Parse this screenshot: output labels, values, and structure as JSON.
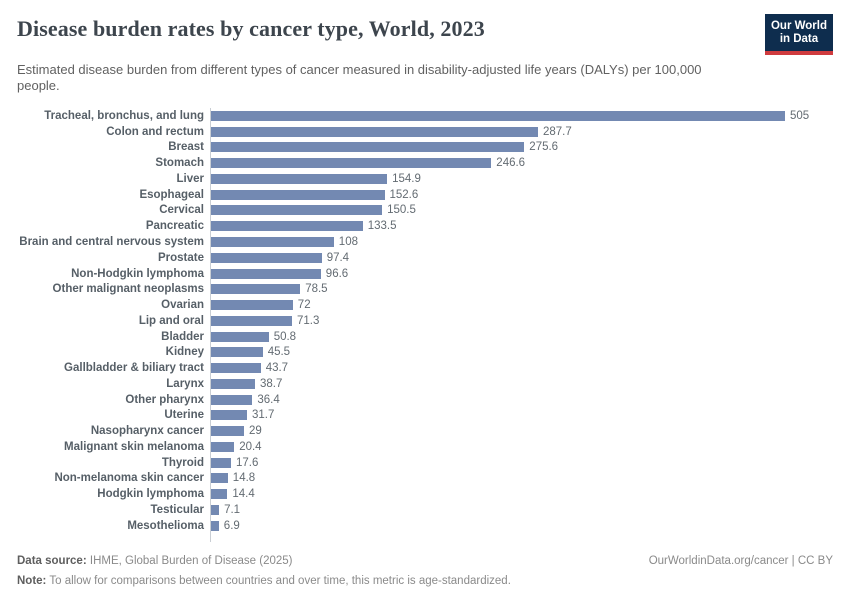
{
  "header": {
    "title": "Disease burden rates by cancer type, World, 2023",
    "subtitle": "Estimated disease burden from different types of cancer measured in disability-adjusted life years (DALYs) per 100,000 people.",
    "logo_line1": "Our World",
    "logo_line2": "in Data"
  },
  "chart_data": {
    "type": "bar",
    "orientation": "horizontal",
    "title": "Disease burden rates by cancer type, World, 2023",
    "xlabel": "",
    "ylabel": "",
    "unit": "DALYs per 100,000 people",
    "grid": false,
    "value_labels": true,
    "xlim": [
      0,
      505
    ],
    "bar_color": "#7389b2",
    "categories": [
      "Tracheal, bronchus, and lung",
      "Colon and rectum",
      "Breast",
      "Stomach",
      "Liver",
      "Esophageal",
      "Cervical",
      "Pancreatic",
      "Brain and central nervous system",
      "Prostate",
      "Non-Hodgkin lymphoma",
      "Other malignant neoplasms",
      "Ovarian",
      "Lip and oral",
      "Bladder",
      "Kidney",
      "Gallbladder & biliary tract",
      "Larynx",
      "Other pharynx",
      "Uterine",
      "Nasopharynx cancer",
      "Malignant skin melanoma",
      "Thyroid",
      "Non-melanoma skin cancer",
      "Hodgkin lymphoma",
      "Testicular",
      "Mesothelioma"
    ],
    "values": [
      505,
      287.7,
      275.6,
      246.6,
      154.9,
      152.6,
      150.5,
      133.5,
      108,
      97.4,
      96.6,
      78.5,
      72,
      71.3,
      50.8,
      45.5,
      43.7,
      38.7,
      36.4,
      31.7,
      29,
      20.4,
      17.6,
      14.8,
      14.4,
      7.1,
      6.9
    ]
  },
  "footer": {
    "source_label": "Data source:",
    "source_text": "IHME, Global Burden of Disease (2025)",
    "note_label": "Note:",
    "note_text": "To allow for comparisons between countries and over time, this metric is age-standardized.",
    "credit": "OurWorldinData.org/cancer | CC BY"
  },
  "theme": {
    "bar_color": "#7389b2",
    "logo_navy": "#0e2d4e",
    "logo_red": "#cf3b3e",
    "axis_line": "#c9ced4"
  }
}
